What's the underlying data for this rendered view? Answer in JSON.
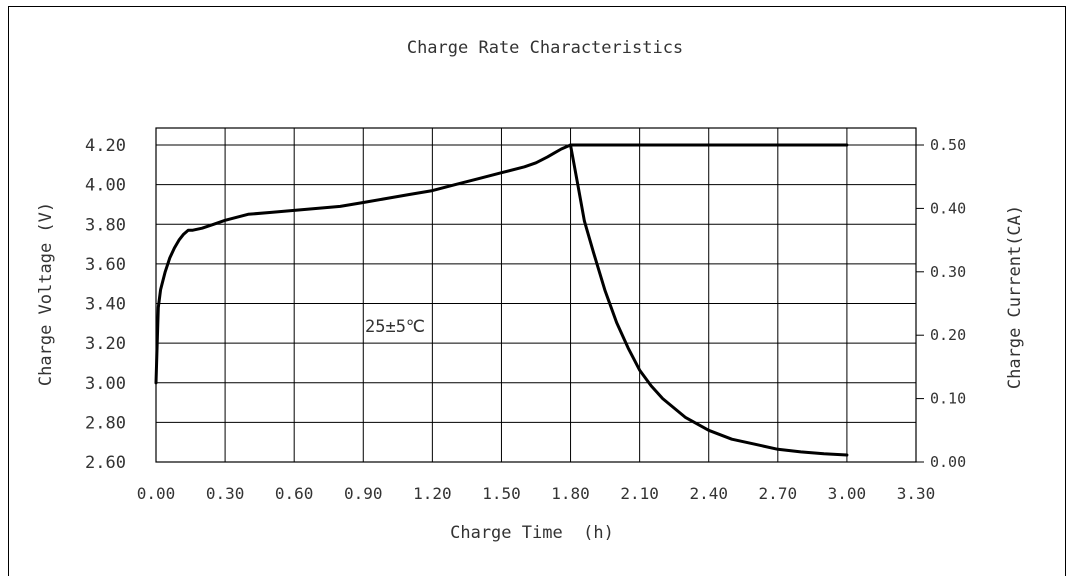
{
  "chart_data": {
    "type": "line",
    "title": "Charge Rate Characteristics",
    "xlabel": "Charge Time  (h)",
    "ylabel_left": "Charge Voltage (V)",
    "ylabel_right": "Charge Current(CA)",
    "annotation": "25±5℃",
    "xlim": [
      0.0,
      3.3
    ],
    "ylim_left": [
      2.6,
      4.2
    ],
    "ylim_right": [
      0.0,
      0.5
    ],
    "grid": true,
    "x_ticks": [
      "0.00",
      "0.30",
      "0.60",
      "0.90",
      "1.20",
      "1.50",
      "1.80",
      "2.10",
      "2.40",
      "2.70",
      "3.00",
      "3.30"
    ],
    "y_left_ticks": [
      "2.60",
      "2.80",
      "3.00",
      "3.20",
      "3.40",
      "3.60",
      "3.80",
      "4.00",
      "4.20"
    ],
    "y_right_ticks": [
      "0.00",
      "0.10",
      "0.20",
      "0.30",
      "0.40",
      "0.50"
    ],
    "series": [
      {
        "axis": "left",
        "x": [
          0.0,
          0.005,
          0.01,
          0.02,
          0.04,
          0.06,
          0.08,
          0.1,
          0.12,
          0.14,
          0.16,
          0.2,
          0.25,
          0.3,
          0.4,
          0.5,
          0.6,
          0.7,
          0.8,
          0.9,
          1.0,
          1.1,
          1.2,
          1.3,
          1.4,
          1.5,
          1.6,
          1.65,
          1.7,
          1.73,
          1.76,
          1.78,
          1.8,
          1.85,
          2.0,
          2.5,
          3.0
        ],
        "values": [
          3.0,
          3.2,
          3.38,
          3.47,
          3.56,
          3.63,
          3.68,
          3.72,
          3.75,
          3.77,
          3.77,
          3.78,
          3.8,
          3.82,
          3.85,
          3.86,
          3.87,
          3.88,
          3.89,
          3.91,
          3.93,
          3.95,
          3.97,
          4.0,
          4.03,
          4.06,
          4.09,
          4.11,
          4.14,
          4.16,
          4.18,
          4.19,
          4.2,
          4.2,
          4.2,
          4.2,
          4.2
        ]
      },
      {
        "axis": "right",
        "x": [
          1.8,
          1.83,
          1.86,
          1.9,
          1.95,
          2.0,
          2.05,
          2.1,
          2.15,
          2.2,
          2.3,
          2.4,
          2.5,
          2.6,
          2.7,
          2.8,
          2.9,
          3.0
        ],
        "values": [
          0.5,
          0.44,
          0.38,
          0.33,
          0.27,
          0.22,
          0.18,
          0.145,
          0.12,
          0.1,
          0.07,
          0.05,
          0.036,
          0.028,
          0.02,
          0.016,
          0.013,
          0.011
        ]
      }
    ]
  }
}
